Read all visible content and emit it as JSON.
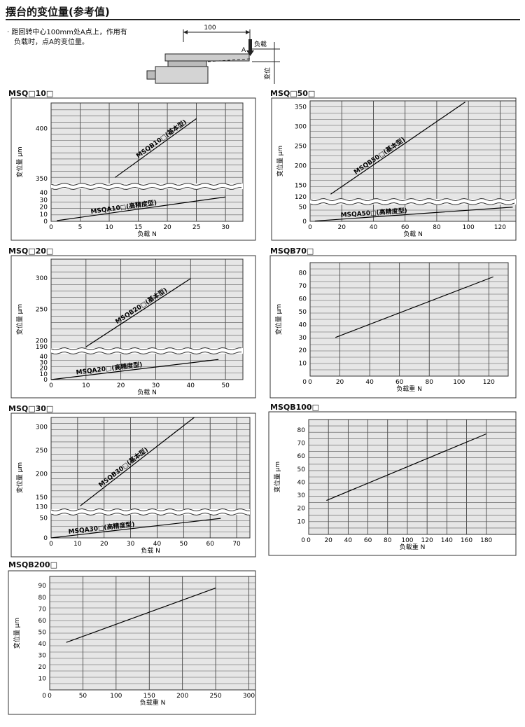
{
  "header": {
    "title": "摆台的变位量(参考值)",
    "note_lines": [
      "· 距回转中心100mm处A点上，作用有",
      "负载时，点A的变位量。"
    ]
  },
  "diagram": {
    "dimension_label": "100",
    "point_label": "A",
    "load_label": "负载",
    "displacement_label": "变位"
  },
  "chart_data": [
    {
      "id": "MSQ10",
      "title": "MSQ□10□",
      "type": "line",
      "xlabel": "负载  N",
      "ylabel": "变位量  μm",
      "xlim": [
        0,
        33
      ],
      "x_ticks": [
        0,
        5,
        10,
        15,
        20,
        25,
        30
      ],
      "broken_axis": true,
      "upper": {
        "ylim": [
          345,
          425
        ],
        "ticks": [
          350,
          400
        ]
      },
      "lower": {
        "ylim": [
          0,
          45
        ],
        "ticks": [
          10,
          20,
          30,
          40
        ]
      },
      "series": [
        {
          "name": "MSQB10□(基本型)",
          "segment": "upper",
          "x": [
            11,
            25
          ],
          "y": [
            351,
            410
          ]
        },
        {
          "name": "MSQA10□(高精度型)",
          "segment": "lower",
          "x": [
            1,
            30
          ],
          "y": [
            1,
            34
          ]
        }
      ]
    },
    {
      "id": "MSQ50",
      "title": "MSQ□50□",
      "type": "line",
      "xlabel": "负载  N",
      "ylabel": "变位量  μm",
      "xlim": [
        0,
        130
      ],
      "x_ticks": [
        0,
        20,
        40,
        60,
        80,
        100,
        120
      ],
      "broken_axis": true,
      "upper": {
        "ylim": [
          115,
          365
        ],
        "ticks": [
          120,
          150,
          200,
          250,
          300,
          350
        ]
      },
      "lower": {
        "ylim": [
          0,
          58
        ],
        "ticks": [
          50
        ]
      },
      "series": [
        {
          "name": "MSQB50□(基本型)",
          "segment": "upper",
          "x": [
            13,
            98
          ],
          "y": [
            127,
            362
          ]
        },
        {
          "name": "MSQA50□(高精度型)",
          "segment": "lower",
          "x": [
            3,
            128
          ],
          "y": [
            1,
            49
          ]
        }
      ]
    },
    {
      "id": "MSQ20",
      "title": "MSQ□20□",
      "type": "line",
      "xlabel": "负载  N",
      "ylabel": "变位量  μm",
      "xlim": [
        0,
        55
      ],
      "x_ticks": [
        0,
        10,
        20,
        30,
        40,
        50
      ],
      "broken_axis": true,
      "upper": {
        "ylim": [
          188,
          330
        ],
        "ticks": [
          190,
          200,
          250,
          300
        ]
      },
      "lower": {
        "ylim": [
          0,
          45
        ],
        "ticks": [
          10,
          20,
          30,
          40
        ]
      },
      "series": [
        {
          "name": "MSQB20□(基本型)",
          "segment": "upper",
          "x": [
            10,
            40
          ],
          "y": [
            190,
            299
          ]
        },
        {
          "name": "MSQA20□(高精度型)",
          "segment": "lower",
          "x": [
            0,
            48
          ],
          "y": [
            0,
            35
          ]
        }
      ]
    },
    {
      "id": "MSQB70",
      "title": "MSQB70□",
      "type": "line",
      "xlabel": "负载重  N",
      "ylabel": "变位量  μm",
      "xlim": [
        0,
        133
      ],
      "x_ticks": [
        0,
        20,
        40,
        60,
        80,
        100,
        120
      ],
      "ylim": [
        0,
        88
      ],
      "y_ticks": [
        10,
        20,
        30,
        40,
        50,
        60,
        70,
        80
      ],
      "series": [
        {
          "x": [
            17,
            123
          ],
          "y": [
            30,
            77
          ]
        }
      ]
    },
    {
      "id": "MSQ30",
      "title": "MSQ□30□",
      "type": "line",
      "xlabel": "负载  N",
      "ylabel": "变位量  μm",
      "xlim": [
        0,
        75
      ],
      "x_ticks": [
        0,
        10,
        20,
        30,
        40,
        50,
        60,
        70
      ],
      "broken_axis": true,
      "upper": {
        "ylim": [
          125,
          320
        ],
        "ticks": [
          130,
          150,
          200,
          250,
          300
        ]
      },
      "lower": {
        "ylim": [
          0,
          58
        ],
        "ticks": [
          50
        ]
      },
      "series": [
        {
          "name": "MSQB30□(基本型)",
          "segment": "upper",
          "x": [
            11,
            54
          ],
          "y": [
            132,
            320
          ]
        },
        {
          "name": "MSQA30□(高精度型)",
          "segment": "lower",
          "x": [
            0,
            64
          ],
          "y": [
            0,
            49
          ]
        }
      ]
    },
    {
      "id": "MSQB100",
      "title": "MSQB100□",
      "type": "line",
      "xlabel": "负载重  N",
      "ylabel": "变位量  μm",
      "xlim": [
        0,
        210
      ],
      "x_ticks": [
        0,
        20,
        40,
        60,
        80,
        100,
        120,
        140,
        160,
        180
      ],
      "ylim": [
        0,
        88
      ],
      "y_ticks": [
        10,
        20,
        30,
        40,
        50,
        60,
        70,
        80
      ],
      "series": [
        {
          "x": [
            18,
            180
          ],
          "y": [
            26,
            77
          ]
        }
      ]
    },
    {
      "id": "MSQB200",
      "title": "MSQB200□",
      "type": "line",
      "xlabel": "负载重  N",
      "ylabel": "变位量  μm",
      "xlim": [
        0,
        310
      ],
      "x_ticks": [
        0,
        50,
        100,
        150,
        200,
        250,
        300
      ],
      "ylim": [
        0,
        98
      ],
      "y_ticks": [
        10,
        20,
        30,
        40,
        50,
        60,
        70,
        80,
        90
      ],
      "series": [
        {
          "x": [
            25,
            250
          ],
          "y": [
            41,
            88
          ]
        }
      ]
    }
  ]
}
